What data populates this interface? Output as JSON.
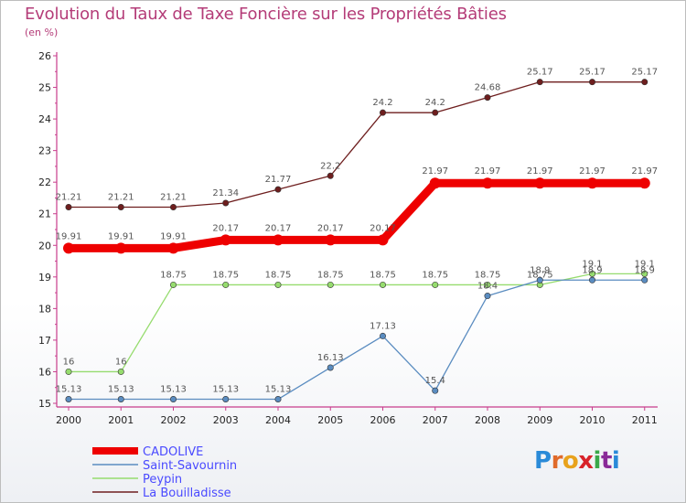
{
  "title": "Evolution du Taux de Taxe Foncière sur les Propriétés Bâties",
  "unit": "(en %)",
  "logo_text": "Proxiti",
  "chart_data": {
    "type": "line",
    "title": "Evolution du Taux de Taxe Foncière sur les Propriétés Bâties",
    "ylabel": "(en %)",
    "xlabel": "",
    "ylim": [
      15,
      26
    ],
    "yticks": [
      "15",
      "16",
      "17",
      "18",
      "19",
      "20",
      "21",
      "22",
      "23",
      "24",
      "25",
      "26"
    ],
    "categories": [
      "2000",
      "2001",
      "2002",
      "2003",
      "2004",
      "2005",
      "2006",
      "2007",
      "2008",
      "2009",
      "2010",
      "2011"
    ],
    "series": [
      {
        "name": "La Bouilladisse",
        "color": "#6e1e1e",
        "values": [
          21.21,
          21.21,
          21.21,
          21.34,
          21.77,
          22.2,
          24.2,
          24.2,
          24.68,
          25.17,
          25.17,
          25.17
        ],
        "labels": [
          "21.21",
          "21.21",
          "21.21",
          "21.34",
          "21.77",
          "22.2",
          "24.2",
          "24.2",
          "24.68",
          "25.17",
          "25.17",
          "25.17"
        ]
      },
      {
        "name": "Peypin",
        "color": "#96dc6e",
        "values": [
          16,
          16,
          18.75,
          18.75,
          18.75,
          18.75,
          18.75,
          18.75,
          18.75,
          18.75,
          19.1,
          19.1
        ],
        "labels": [
          "16",
          "16",
          "18.75",
          "18.75",
          "18.75",
          "18.75",
          "18.75",
          "18.75",
          "18.75",
          "18.75",
          "19.1",
          "19.1"
        ]
      },
      {
        "name": "Saint-Savournin",
        "color": "#5a8cc0",
        "values": [
          15.13,
          15.13,
          15.13,
          15.13,
          15.13,
          16.13,
          17.13,
          15.4,
          18.4,
          18.9,
          18.9,
          18.9
        ],
        "labels": [
          "15.13",
          "15.13",
          "15.13",
          "15.13",
          "15.13",
          "16.13",
          "17.13",
          "15.4",
          "18.4",
          "18.9",
          "18.9",
          "18.9"
        ]
      },
      {
        "name": "CADOLIVE",
        "color": "#ee0000",
        "values": [
          19.91,
          19.91,
          19.91,
          20.17,
          20.17,
          20.17,
          20.17,
          21.97,
          21.97,
          21.97,
          21.97,
          21.97
        ],
        "labels": [
          "19.91",
          "19.91",
          "19.91",
          "20.17",
          "20.17",
          "20.17",
          "20.17",
          "21.97",
          "21.97",
          "21.97",
          "21.97",
          "21.97"
        ]
      }
    ],
    "legend": [
      "CADOLIVE",
      "Saint-Savournin",
      "Peypin",
      "La Bouilladisse"
    ],
    "legend_position": "bottom-left",
    "grid": false
  }
}
